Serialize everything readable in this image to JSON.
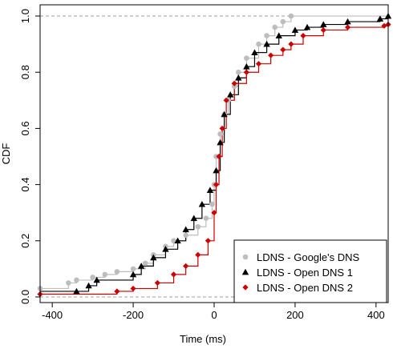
{
  "chart_data": {
    "type": "line",
    "subtype": "empirical CDF step plot with point markers",
    "xlabel": "Time (ms)",
    "ylabel": "CDF",
    "xlim": [
      -430,
      430
    ],
    "ylim": [
      -0.02,
      1.04
    ],
    "x_ticks": [
      -400,
      -200,
      0,
      200,
      400
    ],
    "x_tick_labels": [
      "-400",
      "-200",
      "0",
      "200",
      "400"
    ],
    "y_ticks": [
      0.0,
      0.2,
      0.4,
      0.6,
      0.8,
      1.0
    ],
    "y_tick_labels": [
      "0.0",
      "0.2",
      "0.4",
      "0.6",
      "0.8",
      "1.0"
    ],
    "reference_lines": [
      0,
      1
    ],
    "grid": false,
    "legend_position": "bottom-right",
    "series": [
      {
        "name": "LDNS - Google's DNS",
        "color": "#bdbdbd",
        "marker": "circle",
        "points": [
          [
            -430,
            0.03
          ],
          [
            -360,
            0.05
          ],
          [
            -340,
            0.06
          ],
          [
            -300,
            0.07
          ],
          [
            -270,
            0.08
          ],
          [
            -240,
            0.09
          ],
          [
            -200,
            0.1
          ],
          [
            -170,
            0.12
          ],
          [
            -150,
            0.15
          ],
          [
            -120,
            0.18
          ],
          [
            -100,
            0.2
          ],
          [
            -70,
            0.22
          ],
          [
            -40,
            0.25
          ],
          [
            -20,
            0.28
          ],
          [
            -5,
            0.33
          ],
          [
            0,
            0.4
          ],
          [
            5,
            0.5
          ],
          [
            15,
            0.58
          ],
          [
            25,
            0.65
          ],
          [
            35,
            0.7
          ],
          [
            50,
            0.75
          ],
          [
            60,
            0.8
          ],
          [
            80,
            0.85
          ],
          [
            110,
            0.9
          ],
          [
            130,
            0.93
          ],
          [
            150,
            0.96
          ],
          [
            170,
            0.98
          ],
          [
            190,
            1.0
          ]
        ]
      },
      {
        "name": "LDNS - Open DNS 1",
        "color": "#000000",
        "marker": "triangle",
        "points": [
          [
            -340,
            0.02
          ],
          [
            -310,
            0.04
          ],
          [
            -290,
            0.06
          ],
          [
            -200,
            0.08
          ],
          [
            -180,
            0.11
          ],
          [
            -150,
            0.14
          ],
          [
            -120,
            0.17
          ],
          [
            -90,
            0.2
          ],
          [
            -70,
            0.24
          ],
          [
            -50,
            0.28
          ],
          [
            -30,
            0.33
          ],
          [
            -10,
            0.38
          ],
          [
            5,
            0.45
          ],
          [
            15,
            0.55
          ],
          [
            25,
            0.65
          ],
          [
            40,
            0.72
          ],
          [
            60,
            0.78
          ],
          [
            80,
            0.82
          ],
          [
            100,
            0.87
          ],
          [
            130,
            0.9
          ],
          [
            160,
            0.93
          ],
          [
            200,
            0.95
          ],
          [
            230,
            0.96
          ],
          [
            270,
            0.97
          ],
          [
            330,
            0.98
          ],
          [
            410,
            0.99
          ],
          [
            430,
            1.0
          ]
        ]
      },
      {
        "name": "LDNS - Open DNS 2",
        "color": "#cc0000",
        "marker": "diamond",
        "points": [
          [
            -430,
            0.01
          ],
          [
            -240,
            0.02
          ],
          [
            -200,
            0.03
          ],
          [
            -140,
            0.05
          ],
          [
            -100,
            0.08
          ],
          [
            -70,
            0.11
          ],
          [
            -40,
            0.15
          ],
          [
            -15,
            0.2
          ],
          [
            0,
            0.3
          ],
          [
            5,
            0.4
          ],
          [
            12,
            0.5
          ],
          [
            20,
            0.6
          ],
          [
            30,
            0.7
          ],
          [
            50,
            0.76
          ],
          [
            80,
            0.8
          ],
          [
            110,
            0.83
          ],
          [
            140,
            0.86
          ],
          [
            170,
            0.88
          ],
          [
            190,
            0.9
          ],
          [
            220,
            0.93
          ],
          [
            270,
            0.95
          ],
          [
            330,
            0.96
          ],
          [
            420,
            0.965
          ],
          [
            430,
            0.97
          ]
        ]
      }
    ]
  }
}
